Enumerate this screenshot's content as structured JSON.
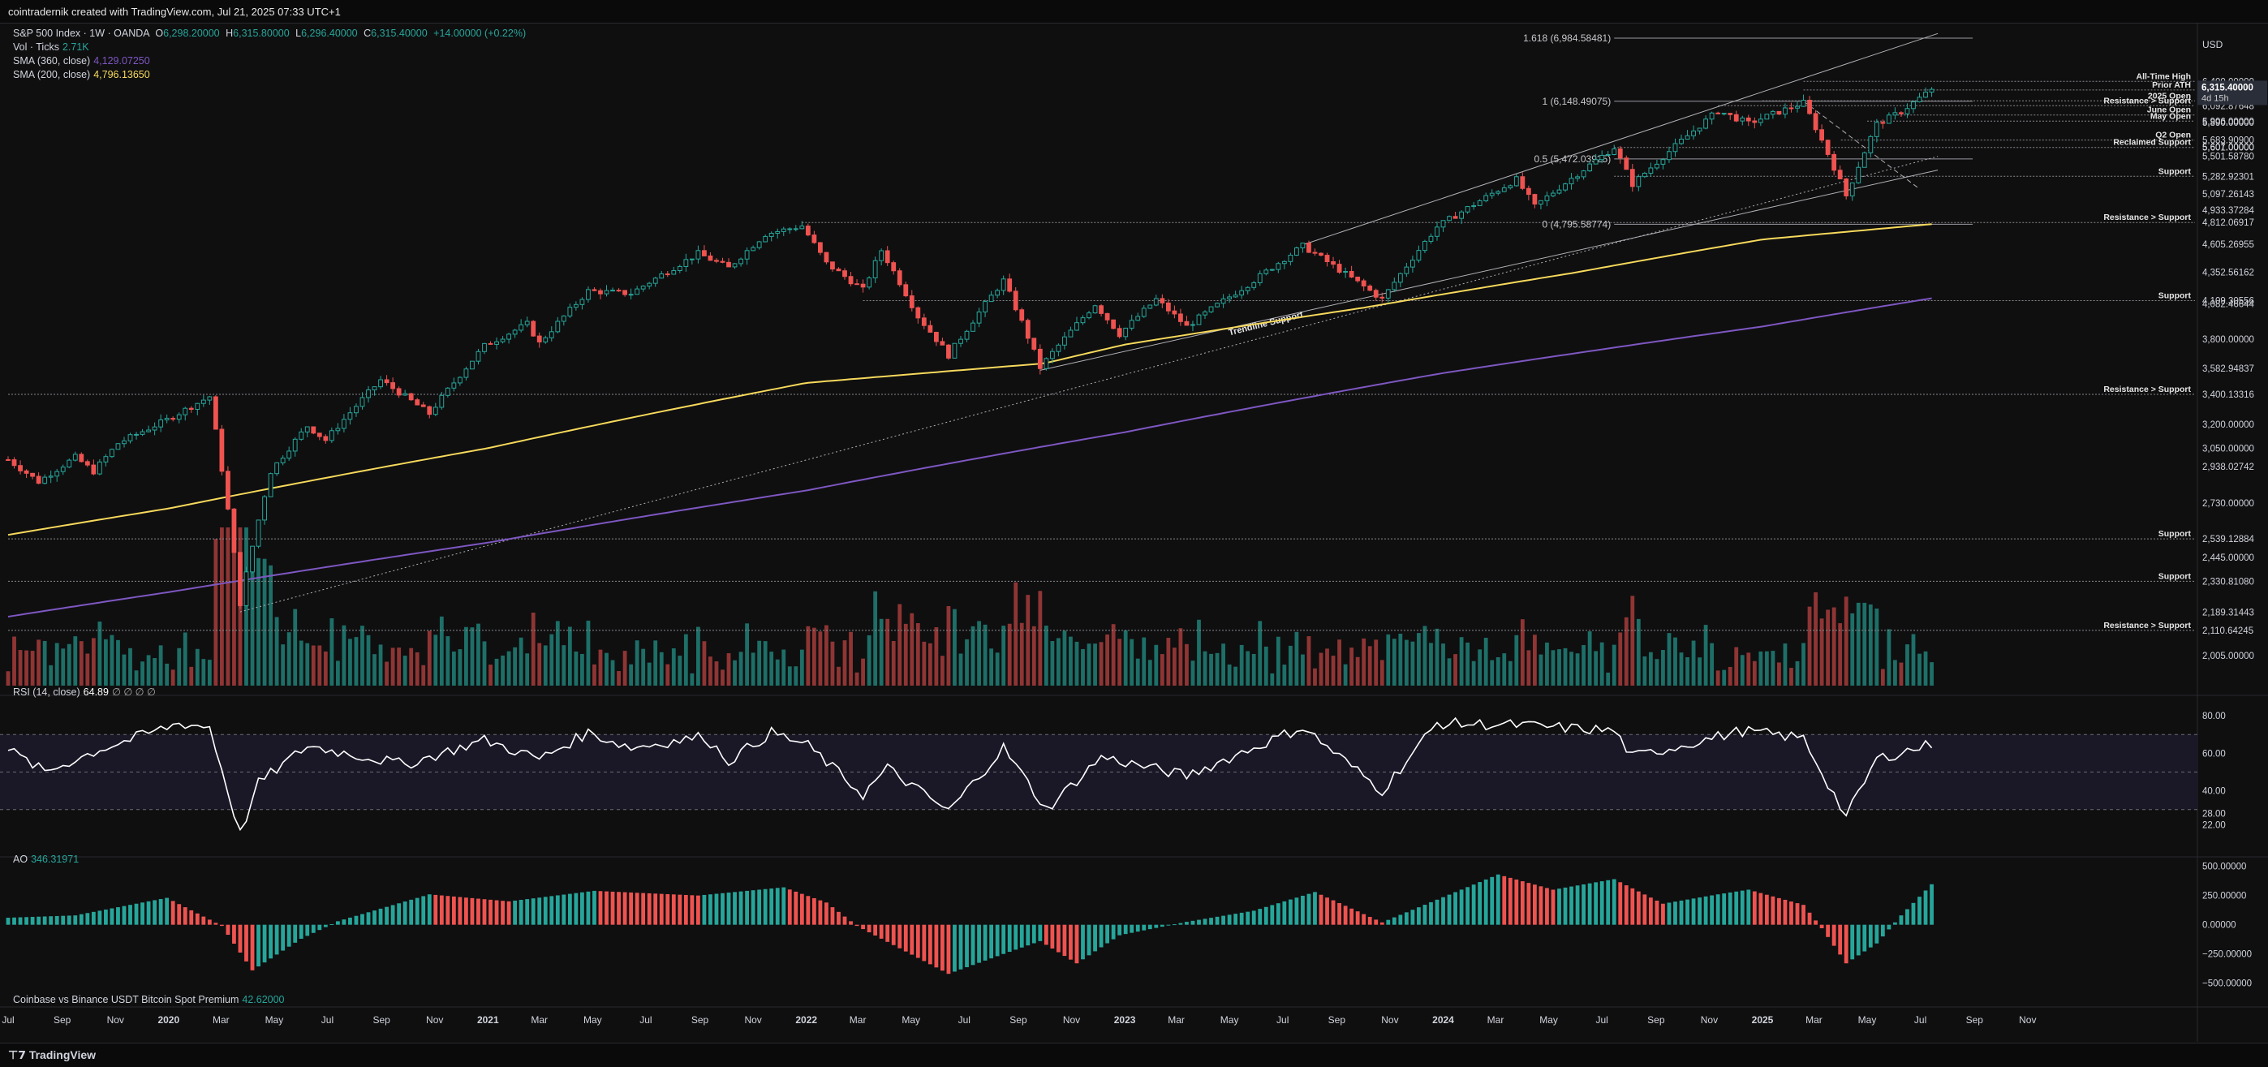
{
  "header": {
    "title": "cointradernik created with TradingView.com, Jul 21, 2025 07:33 UTC+1"
  },
  "footer": {
    "brand": "TradingView",
    "logo_icon": "tradingview-logo-icon"
  },
  "legend": {
    "symbol": "S&P 500 Index · 1W · OANDA",
    "open_label": "O",
    "open": "6,298.20000",
    "high_label": "H",
    "high": "6,315.80000",
    "low_label": "L",
    "low": "6,296.40000",
    "close_label": "C",
    "close": "6,315.40000",
    "change": "+14.00000 (+0.22%)",
    "vol_label": "Vol · Ticks",
    "vol_value": "2.71K",
    "sma360_label": "SMA (360, close)",
    "sma360_value": "4,129.07250",
    "sma200_label": "SMA (200, close)",
    "sma200_value": "4,796.13650",
    "rsi_label": "RSI (14, close)",
    "rsi_value": "64.89",
    "rsi_extra": "∅ ∅ ∅ ∅",
    "ao_label": "AO",
    "ao_value": "346.31971",
    "premium_label": "Coinbase vs Binance USDT Bitcoin Spot Premium",
    "premium_value": "42.62000"
  },
  "colors": {
    "up": "#26a69a",
    "down": "#ef5350",
    "sma200": "#f7d95b",
    "sma360": "#7e57c2",
    "rsi": "#ffffff",
    "bg": "#0f0f10",
    "grid": "#5a5a5e"
  },
  "chart_data": {
    "type": "candlestick",
    "timeframe": "1W",
    "currency": "USD",
    "scale": "log",
    "ylim": [
      1900,
      7100
    ],
    "x_range": [
      "2019-07-01",
      "2025-11-30"
    ],
    "x_ticks": [
      {
        "date": "2019-07-01",
        "label": "Jul"
      },
      {
        "date": "2019-09-01",
        "label": "Sep"
      },
      {
        "date": "2019-11-01",
        "label": "Nov"
      },
      {
        "date": "2020-01-01",
        "label": "2020"
      },
      {
        "date": "2020-03-01",
        "label": "Mar"
      },
      {
        "date": "2020-05-01",
        "label": "May"
      },
      {
        "date": "2020-07-01",
        "label": "Jul"
      },
      {
        "date": "2020-09-01",
        "label": "Sep"
      },
      {
        "date": "2020-11-01",
        "label": "Nov"
      },
      {
        "date": "2021-01-01",
        "label": "2021"
      },
      {
        "date": "2021-03-01",
        "label": "Mar"
      },
      {
        "date": "2021-05-01",
        "label": "May"
      },
      {
        "date": "2021-07-01",
        "label": "Jul"
      },
      {
        "date": "2021-09-01",
        "label": "Sep"
      },
      {
        "date": "2021-11-01",
        "label": "Nov"
      },
      {
        "date": "2022-01-01",
        "label": "2022"
      },
      {
        "date": "2022-03-01",
        "label": "Mar"
      },
      {
        "date": "2022-05-01",
        "label": "May"
      },
      {
        "date": "2022-07-01",
        "label": "Jul"
      },
      {
        "date": "2022-09-01",
        "label": "Sep"
      },
      {
        "date": "2022-11-01",
        "label": "Nov"
      },
      {
        "date": "2023-01-01",
        "label": "2023"
      },
      {
        "date": "2023-03-01",
        "label": "Mar"
      },
      {
        "date": "2023-05-01",
        "label": "May"
      },
      {
        "date": "2023-07-01",
        "label": "Jul"
      },
      {
        "date": "2023-09-01",
        "label": "Sep"
      },
      {
        "date": "2023-11-01",
        "label": "Nov"
      },
      {
        "date": "2024-01-01",
        "label": "2024"
      },
      {
        "date": "2024-03-01",
        "label": "Mar"
      },
      {
        "date": "2024-05-01",
        "label": "May"
      },
      {
        "date": "2024-07-01",
        "label": "Jul"
      },
      {
        "date": "2024-09-01",
        "label": "Sep"
      },
      {
        "date": "2024-11-01",
        "label": "Nov"
      },
      {
        "date": "2025-01-01",
        "label": "2025"
      },
      {
        "date": "2025-03-01",
        "label": "Mar"
      },
      {
        "date": "2025-05-01",
        "label": "May"
      },
      {
        "date": "2025-07-01",
        "label": "Jul"
      },
      {
        "date": "2025-09-01",
        "label": "Sep"
      },
      {
        "date": "2025-11-01",
        "label": "Nov"
      }
    ],
    "y_ticks": [
      6400,
      6290,
      6153,
      6092.87648,
      5906,
      5890,
      5683.909,
      5607,
      5601,
      5501.5878,
      5282.92301,
      5097.26143,
      4933.37284,
      4812.06917,
      4605.26955,
      4352.56162,
      4109.30556,
      4082.46644,
      3800,
      3582.94837,
      3400.13316,
      3200,
      3050,
      2938.02742,
      2730,
      2539.12884,
      2445,
      2330.8108,
      2189.31443,
      2110.64245,
      2005
    ],
    "current_price": {
      "value": 6315.4,
      "label": "6,315.40000",
      "countdown": "4d 15h"
    },
    "close_anchors": [
      [
        "2019-07-01",
        2980
      ],
      [
        "2019-08-05",
        2850
      ],
      [
        "2019-09-16",
        2995
      ],
      [
        "2019-10-07",
        2910
      ],
      [
        "2019-11-04",
        3080
      ],
      [
        "2019-12-30",
        3230
      ],
      [
        "2020-02-17",
        3385
      ],
      [
        "2020-03-23",
        2230
      ],
      [
        "2020-04-27",
        2910
      ],
      [
        "2020-06-08",
        3190
      ],
      [
        "2020-06-29",
        3100
      ],
      [
        "2020-08-31",
        3500
      ],
      [
        "2020-10-26",
        3270
      ],
      [
        "2020-12-28",
        3750
      ],
      [
        "2021-02-15",
        3920
      ],
      [
        "2021-03-01",
        3770
      ],
      [
        "2021-04-26",
        4190
      ],
      [
        "2021-06-14",
        4170
      ],
      [
        "2021-08-30",
        4520
      ],
      [
        "2021-10-04",
        4390
      ],
      [
        "2021-11-15",
        4700
      ],
      [
        "2021-12-27",
        4780
      ],
      [
        "2022-01-24",
        4430
      ],
      [
        "2022-03-07",
        4200
      ],
      [
        "2022-03-28",
        4550
      ],
      [
        "2022-05-09",
        3980
      ],
      [
        "2022-06-13",
        3680
      ],
      [
        "2022-08-15",
        4280
      ],
      [
        "2022-09-26",
        3590
      ],
      [
        "2022-11-28",
        4080
      ],
      [
        "2022-12-26",
        3840
      ],
      [
        "2023-02-06",
        4120
      ],
      [
        "2023-03-13",
        3900
      ],
      [
        "2023-05-29",
        4280
      ],
      [
        "2023-07-24",
        4590
      ],
      [
        "2023-10-23",
        4120
      ],
      [
        "2023-12-25",
        4770
      ],
      [
        "2024-03-25",
        5250
      ],
      [
        "2024-04-15",
        4970
      ],
      [
        "2024-07-15",
        5600
      ],
      [
        "2024-08-05",
        5200
      ],
      [
        "2024-11-11",
        6030
      ],
      [
        "2024-12-16",
        5880
      ],
      [
        "2025-02-17",
        6130
      ],
      [
        "2025-04-07",
        5080
      ],
      [
        "2025-05-12",
        5870
      ],
      [
        "2025-06-09",
        6020
      ],
      [
        "2025-07-14",
        6298
      ]
    ],
    "sma200": [
      [
        "2019-07-01",
        2560
      ],
      [
        "2020-01-01",
        2700
      ],
      [
        "2021-01-01",
        3050
      ],
      [
        "2022-01-01",
        3480
      ],
      [
        "2022-10-01",
        3620
      ],
      [
        "2023-01-01",
        3760
      ],
      [
        "2023-10-01",
        4050
      ],
      [
        "2024-06-01",
        4350
      ],
      [
        "2025-01-01",
        4650
      ],
      [
        "2025-07-14",
        4796.1365
      ]
    ],
    "sma360": [
      [
        "2019-07-01",
        2170
      ],
      [
        "2020-01-01",
        2280
      ],
      [
        "2021-01-01",
        2520
      ],
      [
        "2022-01-01",
        2800
      ],
      [
        "2023-01-01",
        3150
      ],
      [
        "2024-01-01",
        3550
      ],
      [
        "2025-01-01",
        3900
      ],
      [
        "2025-07-14",
        4129.0725
      ]
    ],
    "trendlines": [
      {
        "label": "",
        "from": [
          "2020-03-23",
          2191
        ],
        "to": [
          "2025-07-21",
          5500
        ],
        "style": "dotted"
      },
      {
        "label": "Trendline Support",
        "from": [
          "2022-09-26",
          3570
        ],
        "to": [
          "2025-07-21",
          5350
        ],
        "style": "solid"
      },
      {
        "label": "",
        "from": [
          "2023-07-24",
          4600
        ],
        "to": [
          "2025-07-21",
          7050
        ],
        "style": "solid"
      },
      {
        "label": "",
        "from": [
          "2025-02-17",
          6150
        ],
        "to": [
          "2025-06-30",
          5150
        ],
        "style": "dashed"
      }
    ],
    "levels": [
      {
        "price": 6400,
        "label": "All-Time High",
        "from": "2025-02-17"
      },
      {
        "price": 6290,
        "label": "Prior ATH",
        "from": "2025-02-17"
      },
      {
        "price": 6153,
        "label": "2025 Open",
        "from": "2025-01-01"
      },
      {
        "price": 6092.87648,
        "label": "Resistance > Support",
        "from": "2024-11-11"
      },
      {
        "price": 5980,
        "label": "June Open",
        "from": "2025-06-01"
      },
      {
        "price": 5906,
        "label": "May Open",
        "from": "2025-05-01"
      },
      {
        "price": 5684,
        "label": "Q2 Open",
        "from": "2025-04-01"
      },
      {
        "price": 5600,
        "label": "Reclaimed Support",
        "from": "2024-07-15"
      },
      {
        "price": 5282.92301,
        "label": "Support",
        "from": "2024-07-15"
      },
      {
        "price": 4812.06917,
        "label": "Resistance > Support",
        "from": "2021-12-27"
      },
      {
        "price": 4109.30556,
        "label": "Support",
        "from": "2022-03-07"
      },
      {
        "price": 3400.13316,
        "label": "Resistance > Support",
        "from": "2019-07-01"
      },
      {
        "price": 2539.12884,
        "label": "Support",
        "from": "2019-07-01"
      },
      {
        "price": 2330.8108,
        "label": "Support",
        "from": "2019-07-01"
      },
      {
        "price": 2110.64245,
        "label": "Resistance > Support",
        "from": "2019-07-01"
      }
    ],
    "fib": [
      {
        "ratio": "1.618",
        "price": 6984.58481,
        "label": "1.618 (6,984.58481)"
      },
      {
        "ratio": "1",
        "price": 6148.49075,
        "label": "1 (6,148.49075)"
      },
      {
        "ratio": "0.5",
        "price": 5472.03925,
        "label": "0.5 (5,472.03925)"
      },
      {
        "ratio": "0",
        "price": 4795.58774,
        "label": "0 (4,795.58774)"
      }
    ],
    "volume": {
      "ylim": [
        0,
        1000
      ]
    },
    "rsi": {
      "ylim": [
        10,
        90
      ],
      "levels": [
        70,
        50,
        30
      ],
      "y_ticks": [
        80,
        60,
        40,
        28,
        22
      ],
      "anchors": [
        [
          "2019-07-01",
          62
        ],
        [
          "2019-08-12",
          50
        ],
        [
          "2019-10-14",
          62
        ],
        [
          "2020-01-13",
          76
        ],
        [
          "2020-02-17",
          74
        ],
        [
          "2020-03-23",
          17
        ],
        [
          "2020-04-13",
          44
        ],
        [
          "2020-06-08",
          64
        ],
        [
          "2020-09-28",
          54
        ],
        [
          "2020-12-28",
          67
        ],
        [
          "2021-03-01",
          57
        ],
        [
          "2021-04-26",
          71
        ],
        [
          "2021-06-14",
          63
        ],
        [
          "2021-09-06",
          69
        ],
        [
          "2021-10-04",
          56
        ],
        [
          "2021-11-22",
          71
        ],
        [
          "2022-01-03",
          64
        ],
        [
          "2022-03-07",
          38
        ],
        [
          "2022-04-04",
          52
        ],
        [
          "2022-06-13",
          29
        ],
        [
          "2022-08-15",
          63
        ],
        [
          "2022-10-03",
          30
        ],
        [
          "2022-12-05",
          58
        ],
        [
          "2023-03-13",
          48
        ],
        [
          "2023-07-24",
          74
        ],
        [
          "2023-10-23",
          40
        ],
        [
          "2023-12-25",
          76
        ],
        [
          "2024-03-25",
          75
        ],
        [
          "2024-07-15",
          72
        ],
        [
          "2024-08-05",
          58
        ],
        [
          "2024-12-09",
          72
        ],
        [
          "2025-02-17",
          68
        ],
        [
          "2025-04-07",
          26
        ],
        [
          "2025-05-12",
          57
        ],
        [
          "2025-07-14",
          64.89
        ]
      ]
    },
    "ao": {
      "ylim": [
        -620,
        560
      ],
      "y_ticks": [
        500,
        250,
        0,
        -250,
        -500
      ],
      "anchors": [
        [
          "2019-07-01",
          60
        ],
        [
          "2019-09-16",
          80
        ],
        [
          "2019-12-30",
          230
        ],
        [
          "2020-03-02",
          -10
        ],
        [
          "2020-04-06",
          -390
        ],
        [
          "2020-06-01",
          -120
        ],
        [
          "2020-07-13",
          30
        ],
        [
          "2020-10-26",
          260
        ],
        [
          "2021-01-25",
          200
        ],
        [
          "2021-05-03",
          290
        ],
        [
          "2021-08-30",
          250
        ],
        [
          "2021-12-06",
          320
        ],
        [
          "2022-01-24",
          190
        ],
        [
          "2022-02-28",
          -10
        ],
        [
          "2022-06-13",
          -420
        ],
        [
          "2022-08-15",
          -250
        ],
        [
          "2022-09-26",
          -140
        ],
        [
          "2022-11-07",
          -330
        ],
        [
          "2022-12-26",
          -90
        ],
        [
          "2023-03-13",
          25
        ],
        [
          "2023-05-29",
          120
        ],
        [
          "2023-08-07",
          280
        ],
        [
          "2023-10-23",
          20
        ],
        [
          "2024-03-04",
          430
        ],
        [
          "2024-05-06",
          300
        ],
        [
          "2024-07-15",
          390
        ],
        [
          "2024-09-09",
          180
        ],
        [
          "2024-11-11",
          260
        ],
        [
          "2024-12-16",
          300
        ],
        [
          "2025-02-17",
          170
        ],
        [
          "2025-03-10",
          -30
        ],
        [
          "2025-04-07",
          -330
        ],
        [
          "2025-05-12",
          -160
        ],
        [
          "2025-06-09",
          80
        ],
        [
          "2025-07-14",
          346.31971
        ]
      ]
    }
  }
}
